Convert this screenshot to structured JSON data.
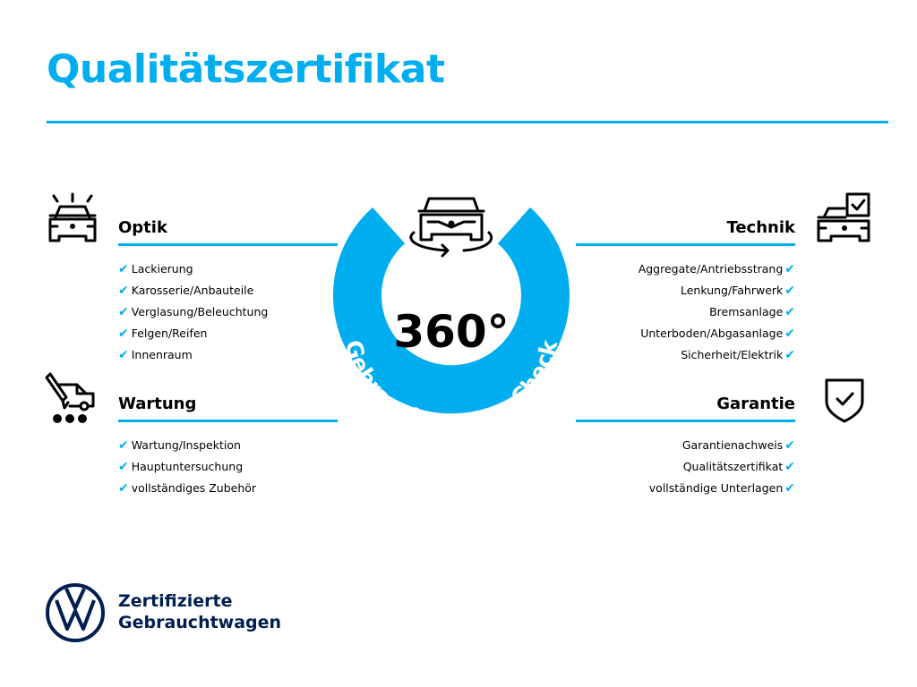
{
  "header": {
    "title": "Qualitätszertifikat"
  },
  "colors": {
    "accent": "#00AEEF",
    "brand": "#001E50"
  },
  "center": {
    "value": "360°",
    "arc_text": "Gebrauchtwagen-Check",
    "icon": "car-rotate-icon"
  },
  "sections": {
    "optik": {
      "title": "Optik",
      "icon": "car-lights-icon",
      "items": [
        "Lackierung",
        "Karosserie/Anbauteile",
        "Verglasung/Beleuchtung",
        "Felgen/Reifen",
        "Innenraum"
      ]
    },
    "wartung": {
      "title": "Wartung",
      "icon": "service-van-icon",
      "items": [
        "Wartung/Inspektion",
        "Hauptuntersuchung",
        "vollständiges Zubehör"
      ]
    },
    "technik": {
      "title": "Technik",
      "icon": "car-checkbox-icon",
      "items": [
        "Aggregate/Antriebsstrang",
        "Lenkung/Fahrwerk",
        "Bremsanlage",
        "Unterboden/Abgasanlage",
        "Sicherheit/Elektrik"
      ]
    },
    "garantie": {
      "title": "Garantie",
      "icon": "shield-check-icon",
      "items": [
        "Garantienachweis",
        "Qualitätszertifikat",
        "vollständige Unterlagen"
      ]
    }
  },
  "check_glyph": "✔",
  "footer": {
    "logo": "VW",
    "line1": "Zertifizierte",
    "line2": "Gebrauchtwagen"
  }
}
